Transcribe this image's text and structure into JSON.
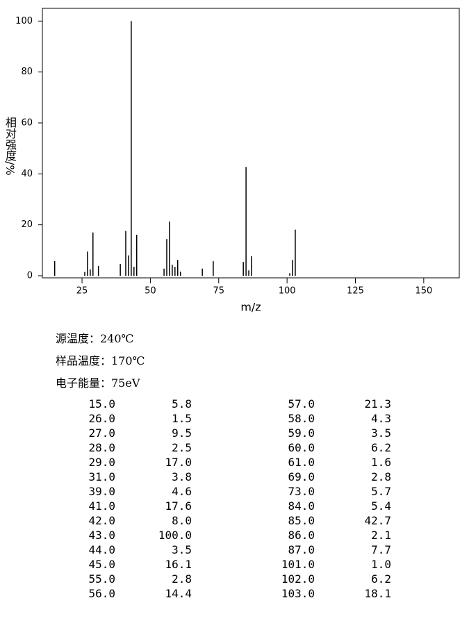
{
  "chart_data": {
    "type": "bar",
    "xlabel": "m/z",
    "ylabel": "相对强度/%",
    "color": "#000000",
    "x": [
      15,
      26,
      27,
      28,
      29,
      31,
      39,
      41,
      42,
      43,
      44,
      45,
      55,
      56,
      57,
      58,
      59,
      60,
      61,
      69,
      73,
      84,
      85,
      86,
      87,
      101,
      102,
      103
    ],
    "values": [
      5.8,
      1.5,
      9.5,
      2.5,
      17.0,
      3.8,
      4.6,
      17.6,
      8.0,
      100.0,
      3.5,
      16.1,
      2.8,
      14.4,
      21.3,
      4.3,
      3.5,
      6.2,
      1.6,
      2.8,
      5.7,
      5.4,
      42.7,
      2.1,
      7.7,
      1.0,
      6.2,
      18.1
    ],
    "xlim": [
      10.5,
      163
    ],
    "ylim": [
      0,
      105
    ],
    "xticks": [
      25,
      50,
      75,
      100,
      125,
      150
    ],
    "yticks": [
      0,
      20,
      40,
      60,
      80,
      100
    ]
  },
  "info": [
    "源温度：240℃",
    "样品温度：170℃",
    "电子能量：75eV"
  ],
  "table": {
    "rows": [
      [
        "15.0",
        "5.8",
        "57.0",
        "21.3"
      ],
      [
        "26.0",
        "1.5",
        "58.0",
        "4.3"
      ],
      [
        "27.0",
        "9.5",
        "59.0",
        "3.5"
      ],
      [
        "28.0",
        "2.5",
        "60.0",
        "6.2"
      ],
      [
        "29.0",
        "17.0",
        "61.0",
        "1.6"
      ],
      [
        "31.0",
        "3.8",
        "69.0",
        "2.8"
      ],
      [
        "39.0",
        "4.6",
        "73.0",
        "5.7"
      ],
      [
        "41.0",
        "17.6",
        "84.0",
        "5.4"
      ],
      [
        "42.0",
        "8.0",
        "85.0",
        "42.7"
      ],
      [
        "43.0",
        "100.0",
        "86.0",
        "2.1"
      ],
      [
        "44.0",
        "3.5",
        "87.0",
        "7.7"
      ],
      [
        "45.0",
        "16.1",
        "101.0",
        "1.0"
      ],
      [
        "55.0",
        "2.8",
        "102.0",
        "6.2"
      ],
      [
        "56.0",
        "14.4",
        "103.0",
        "18.1"
      ]
    ]
  }
}
